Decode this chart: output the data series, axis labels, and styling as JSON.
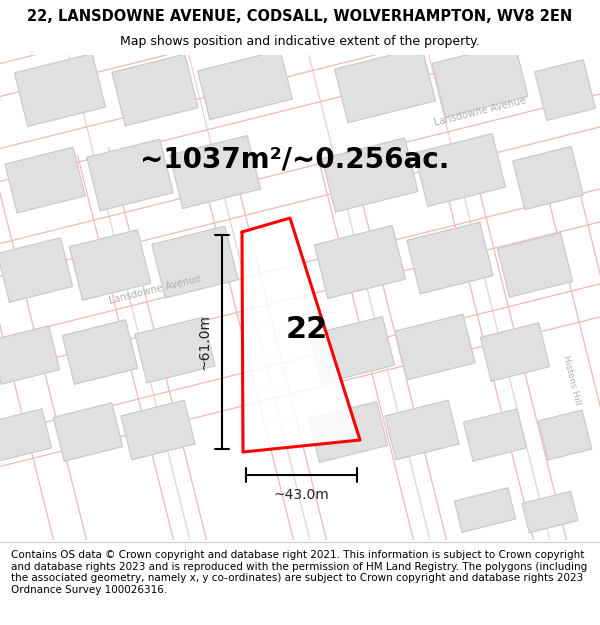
{
  "title_line1": "22, LANSDOWNE AVENUE, CODSALL, WOLVERHAMPTON, WV8 2EN",
  "title_line2": "Map shows position and indicative extent of the property.",
  "area_text": "~1037m²/~0.256ac.",
  "number_label": "22",
  "dim_width": "~43.0m",
  "dim_height": "~61.0m",
  "footer_text": "Contains OS data © Crown copyright and database right 2021. This information is subject to Crown copyright and database rights 2023 and is reproduced with the permission of HM Land Registry. The polygons (including the associated geometry, namely x, y co-ordinates) are subject to Crown copyright and database rights 2023 Ordnance Survey 100026316.",
  "map_bg": "#ffffff",
  "road_line_color": "#f0b8b8",
  "building_fill": "#e0e0e0",
  "building_outline": "#c8c8c8",
  "plot_color": "#ff0000",
  "dim_color": "#222222",
  "street_label_color": "#b0b0b0",
  "title_fontsize": 10.5,
  "subtitle_fontsize": 9,
  "area_fontsize": 20,
  "number_fontsize": 20,
  "dim_fontsize": 10,
  "footer_fontsize": 7.5,
  "road_lw": 0.9,
  "building_lw": 0.7
}
